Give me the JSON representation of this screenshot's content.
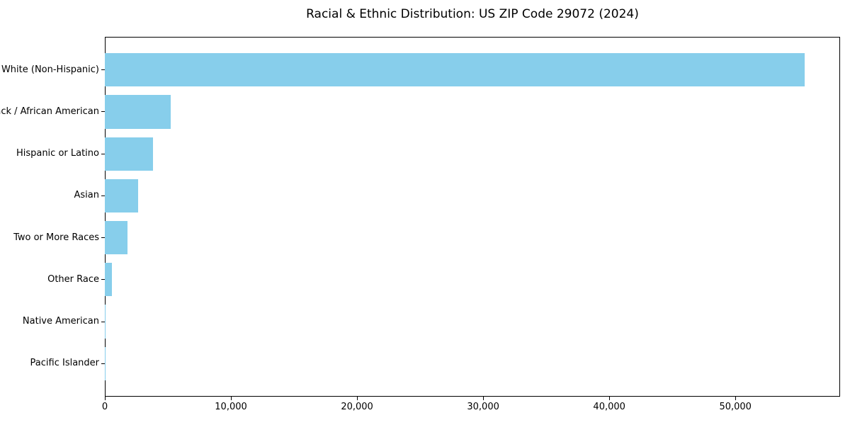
{
  "page": {
    "background": "#ffffff"
  },
  "chart_data": {
    "type": "bar",
    "orientation": "horizontal",
    "title": "Racial & Ethnic Distribution: US ZIP Code 29072 (2024)",
    "categories": [
      "White (Non-Hispanic)",
      "Black / African American",
      "Hispanic or Latino",
      "Asian",
      "Two or More Races",
      "Other Race",
      "Native American",
      "Pacific Islander"
    ],
    "values": [
      55500,
      5200,
      3800,
      2650,
      1800,
      550,
      30,
      10
    ],
    "xlabel": "",
    "ylabel": "",
    "xlim": [
      0,
      58300
    ],
    "x_ticks": [
      0,
      10000,
      20000,
      30000,
      40000,
      50000
    ],
    "x_tick_labels": [
      "0",
      "10,000",
      "20,000",
      "30,000",
      "40,000",
      "50,000"
    ],
    "bar_color": "#87CEEB",
    "axis_color": "#000000",
    "text_color": "#000000",
    "grid": false,
    "legend": null
  }
}
